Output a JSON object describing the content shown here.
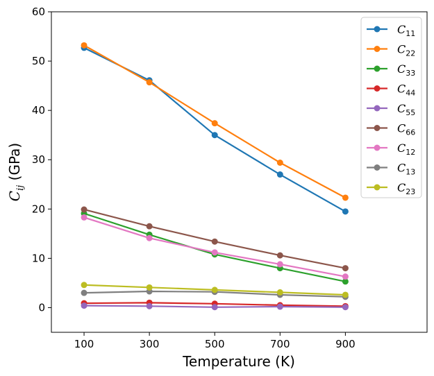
{
  "chart_data": {
    "type": "line",
    "title": "",
    "xlabel": "Temperature (K)",
    "ylabel": {
      "main": "C",
      "sub": "ij",
      "unit": " (GPa)"
    },
    "x": [
      100,
      300,
      500,
      700,
      900
    ],
    "x_ticks": [
      "100",
      "300",
      "500",
      "700",
      "900"
    ],
    "xlim": [
      0,
      1150
    ],
    "ylim": [
      -5,
      60
    ],
    "y_ticks": [
      0,
      10,
      20,
      30,
      40,
      50,
      60
    ],
    "grid": false,
    "legend_position": "top-right",
    "series": [
      {
        "name": "C11",
        "label_main": "C",
        "label_sub": "11",
        "color": "#1f77b4",
        "values": [
          52.7,
          46.1,
          35.0,
          27.0,
          19.5
        ]
      },
      {
        "name": "C22",
        "label_main": "C",
        "label_sub": "22",
        "color": "#ff7f0e",
        "values": [
          53.2,
          45.7,
          37.4,
          29.4,
          22.3
        ]
      },
      {
        "name": "C33",
        "label_main": "C",
        "label_sub": "33",
        "color": "#2ca02c",
        "values": [
          19.1,
          14.8,
          10.8,
          8.0,
          5.3
        ]
      },
      {
        "name": "C44",
        "label_main": "C",
        "label_sub": "44",
        "color": "#d62728",
        "values": [
          0.9,
          1.0,
          0.8,
          0.5,
          0.3
        ]
      },
      {
        "name": "C55",
        "label_main": "C",
        "label_sub": "55",
        "color": "#9467bd",
        "values": [
          0.4,
          0.3,
          0.1,
          0.2,
          0.1
        ]
      },
      {
        "name": "C66",
        "label_main": "C",
        "label_sub": "66",
        "color": "#8c564b",
        "values": [
          19.9,
          16.5,
          13.4,
          10.6,
          8.0
        ]
      },
      {
        "name": "C12",
        "label_main": "C",
        "label_sub": "12",
        "color": "#e377c2",
        "values": [
          18.3,
          14.1,
          11.2,
          8.8,
          6.3
        ]
      },
      {
        "name": "C13",
        "label_main": "C",
        "label_sub": "13",
        "color": "#7f7f7f",
        "values": [
          3.0,
          3.3,
          3.2,
          2.6,
          2.2
        ]
      },
      {
        "name": "C23",
        "label_main": "C",
        "label_sub": "23",
        "color": "#bcbd22",
        "values": [
          4.6,
          4.1,
          3.6,
          3.1,
          2.6
        ]
      }
    ]
  }
}
